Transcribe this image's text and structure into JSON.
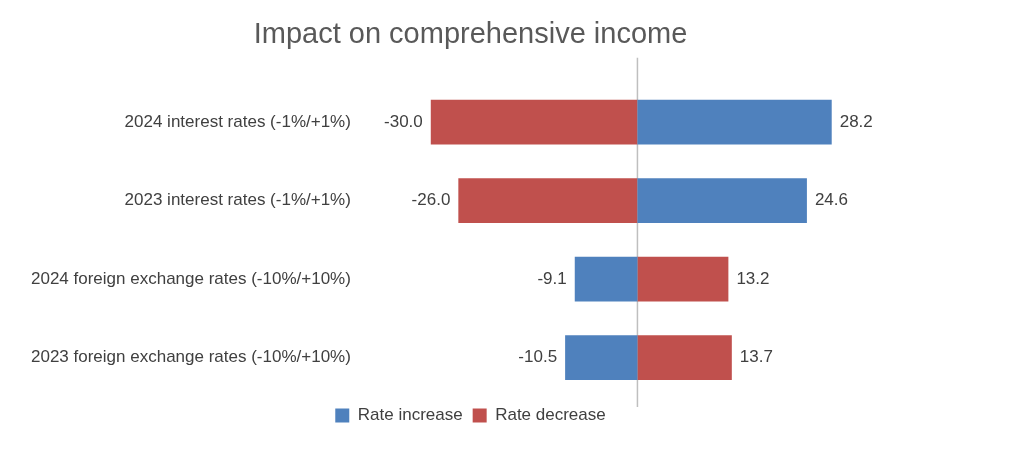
{
  "chart_data": {
    "type": "bar",
    "orientation": "horizontal",
    "stacked": true,
    "title": "Impact on comprehensive income",
    "categories": [
      "2024 interest rates (-1%/+1%)",
      "2023 interest rates (-1%/+1%)",
      "2024 foreign exchange rates (-10%/+10%)",
      "2023 foreign exchange rates (-10%/+10%)"
    ],
    "series": [
      {
        "name": "Rate increase",
        "color": "#4f81bd",
        "values": [
          28.2,
          24.6,
          -9.1,
          -10.5
        ],
        "value_labels": [
          "28.2",
          "24.6",
          "-9.1",
          "-10.5"
        ]
      },
      {
        "name": "Rate decrease",
        "color": "#c0504d",
        "values": [
          -30.0,
          -26.0,
          13.2,
          13.7
        ],
        "value_labels": [
          "-30.0",
          "-26.0",
          "13.2",
          "13.7"
        ]
      }
    ],
    "tick_labels": "y",
    "legend": "bottom",
    "ref_lines": [
      {
        "axis": "x",
        "value": 0,
        "color": "#bfbfbf"
      }
    ]
  }
}
